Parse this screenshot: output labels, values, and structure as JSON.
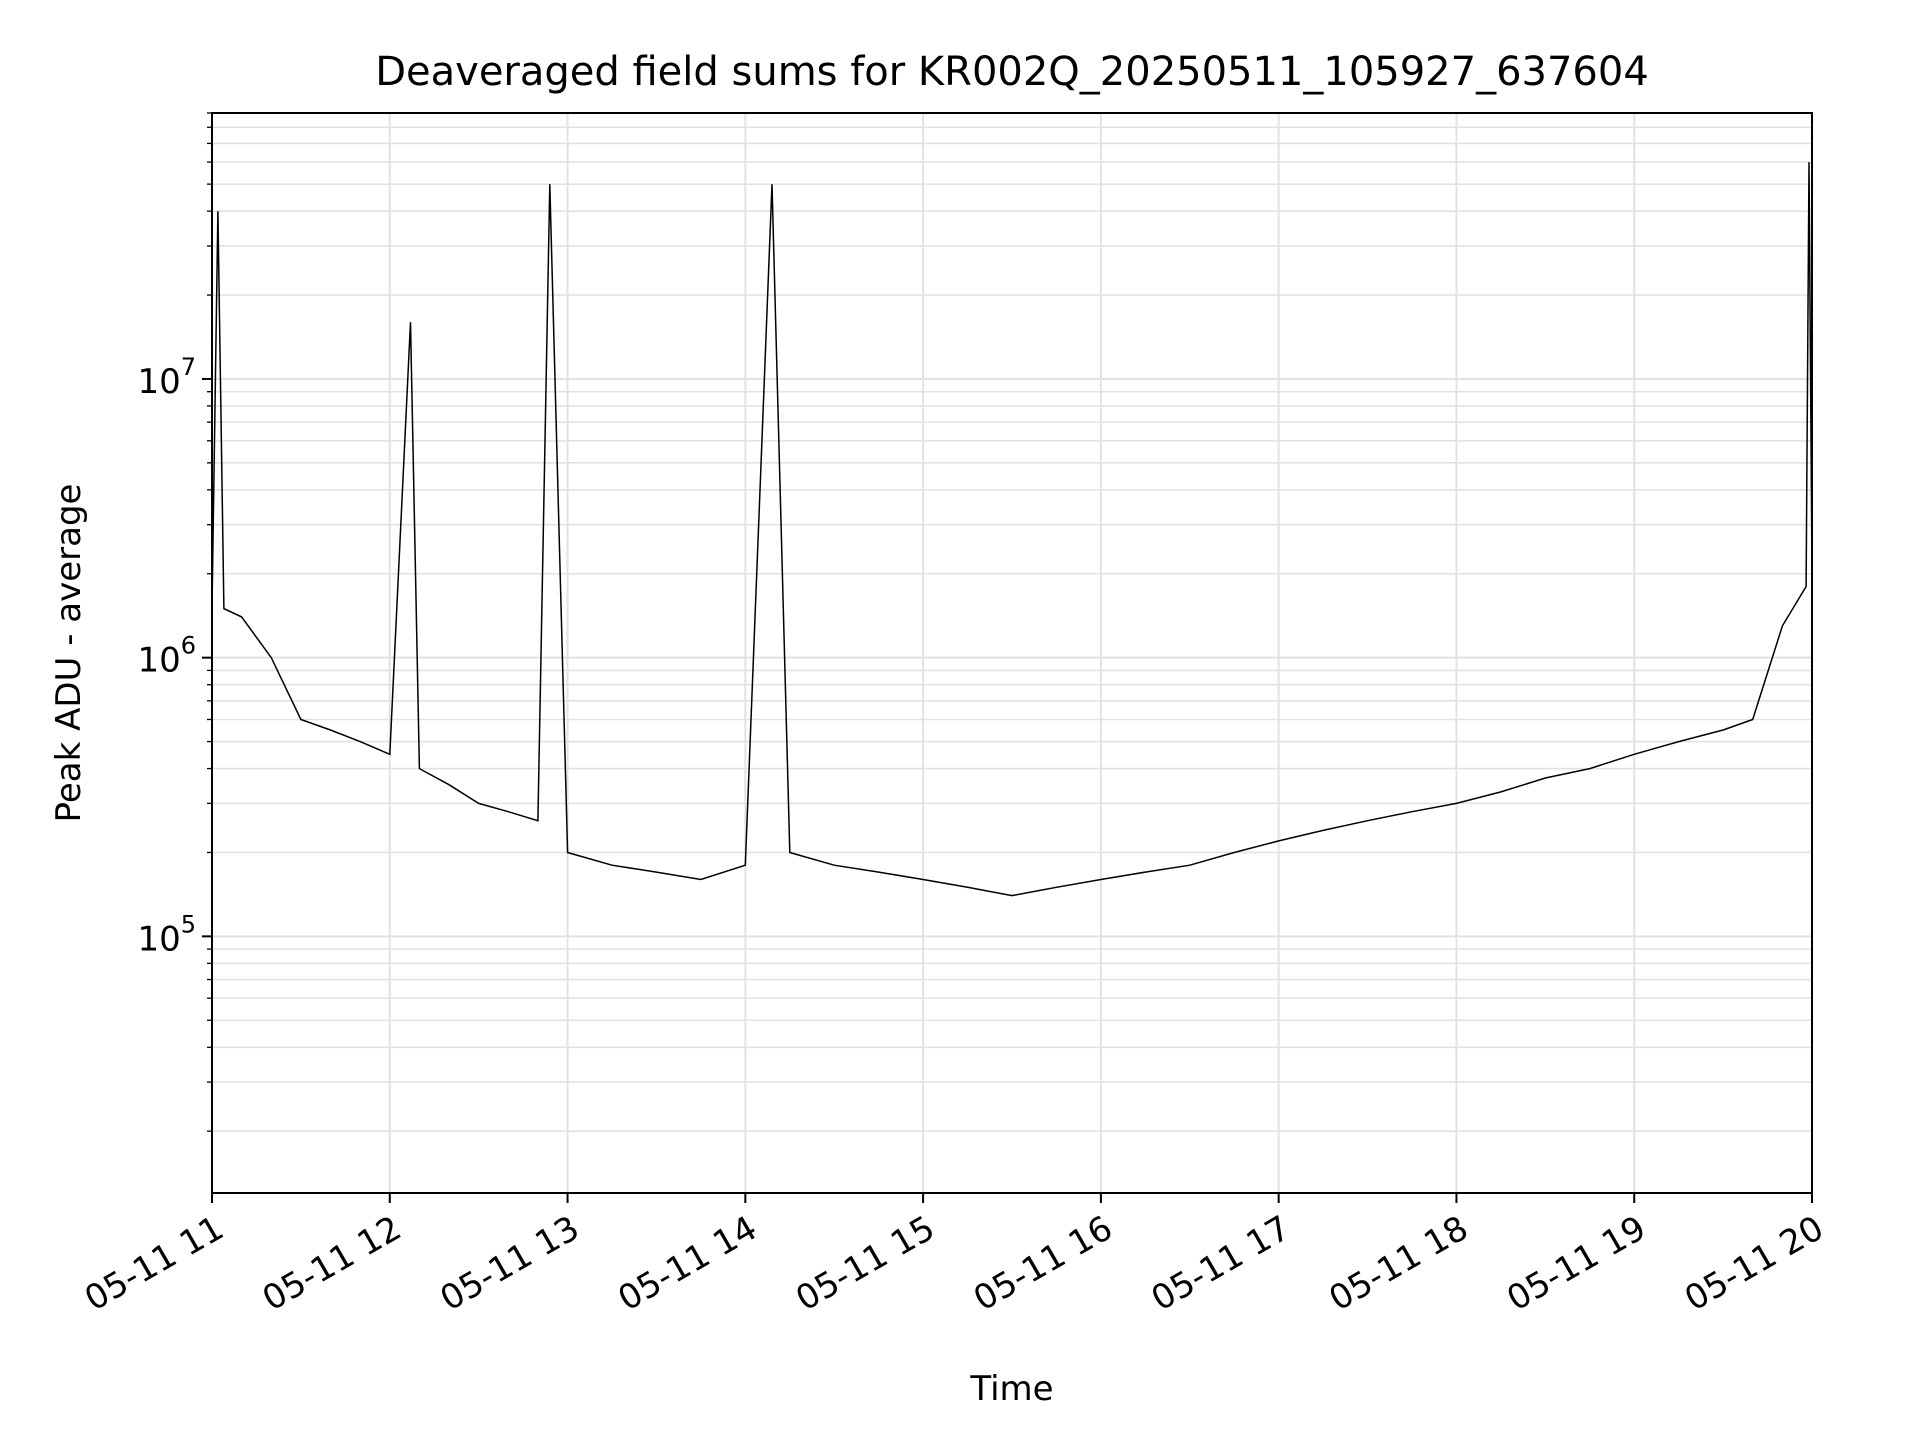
{
  "chart_data": {
    "type": "line",
    "title": "Deaveraged field sums for KR002Q_20250511_105927_637604",
    "xlabel": "Time",
    "ylabel": "Peak ADU - average",
    "xlim": [
      "2025-05-11 11:00",
      "2025-05-11 20:00"
    ],
    "ylim": [
      12000,
      90000000
    ],
    "yscale": "log",
    "grid": true,
    "line_color": "#000000",
    "x_ticks": [
      "05-11 11",
      "05-11 12",
      "05-11 13",
      "05-11 14",
      "05-11 15",
      "05-11 16",
      "05-11 17",
      "05-11 18",
      "05-11 19",
      "05-11 20"
    ],
    "y_ticks": [
      {
        "value": 100000,
        "base": "10",
        "exp": "5"
      },
      {
        "value": 1000000,
        "base": "10",
        "exp": "6"
      },
      {
        "value": 10000000,
        "base": "10",
        "exp": "7"
      }
    ],
    "series": [
      {
        "x": [
          "2025-05-11 11:00",
          "2025-05-11 11:02",
          "2025-05-11 11:04",
          "2025-05-11 11:10",
          "2025-05-11 11:20",
          "2025-05-11 11:30",
          "2025-05-11 11:40",
          "2025-05-11 11:50",
          "2025-05-11 12:00",
          "2025-05-11 12:07",
          "2025-05-11 12:10",
          "2025-05-11 12:20",
          "2025-05-11 12:30",
          "2025-05-11 12:40",
          "2025-05-11 12:50",
          "2025-05-11 12:54",
          "2025-05-11 13:00",
          "2025-05-11 13:15",
          "2025-05-11 13:30",
          "2025-05-11 13:45",
          "2025-05-11 14:00",
          "2025-05-11 14:09",
          "2025-05-11 14:15",
          "2025-05-11 14:30",
          "2025-05-11 14:45",
          "2025-05-11 15:00",
          "2025-05-11 15:15",
          "2025-05-11 15:30",
          "2025-05-11 15:45",
          "2025-05-11 16:00",
          "2025-05-11 16:15",
          "2025-05-11 16:30",
          "2025-05-11 16:45",
          "2025-05-11 17:00",
          "2025-05-11 17:15",
          "2025-05-11 17:30",
          "2025-05-11 17:45",
          "2025-05-11 18:00",
          "2025-05-11 18:15",
          "2025-05-11 18:30",
          "2025-05-11 18:45",
          "2025-05-11 19:00",
          "2025-05-11 19:15",
          "2025-05-11 19:30",
          "2025-05-11 19:40",
          "2025-05-11 19:50",
          "2025-05-11 19:58",
          "2025-05-11 19:59",
          "2025-05-11 20:00"
        ],
        "values": [
          1500000,
          40000000,
          1500000,
          1400000,
          1000000,
          600000,
          550000,
          500000,
          450000,
          16000000,
          400000,
          350000,
          300000,
          280000,
          260000,
          50000000,
          200000,
          180000,
          170000,
          160000,
          180000,
          50000000,
          200000,
          180000,
          170000,
          160000,
          150000,
          140000,
          150000,
          160000,
          170000,
          180000,
          200000,
          220000,
          240000,
          260000,
          280000,
          300000,
          330000,
          370000,
          400000,
          450000,
          500000,
          550000,
          600000,
          1300000,
          1800000,
          60000000,
          2000000
        ]
      }
    ]
  }
}
